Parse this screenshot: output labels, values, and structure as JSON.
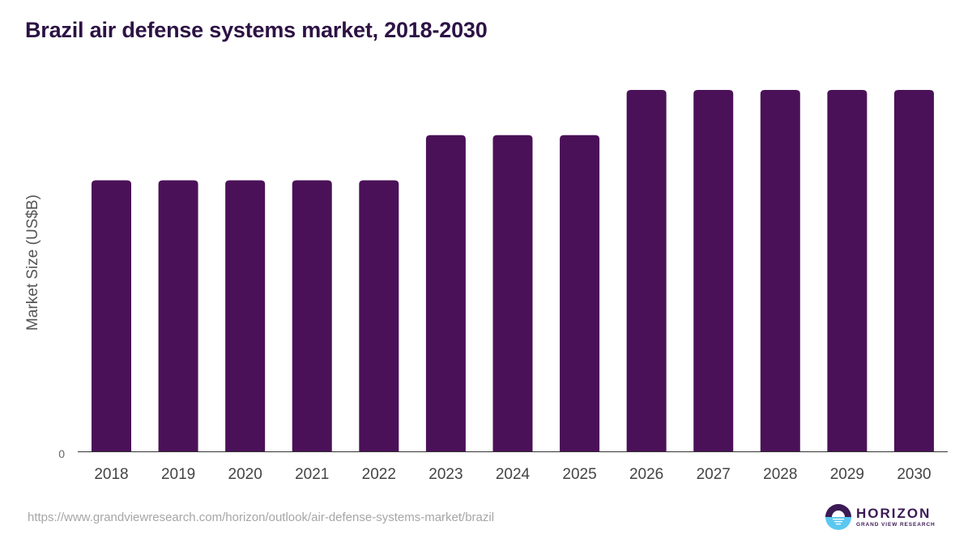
{
  "title": "Brazil air defense systems market, 2018-2030",
  "source_url": "https://www.grandviewresearch.com/horizon/outlook/air-defense-systems-market/brazil",
  "logo": {
    "icon": "horizon-sun-icon",
    "name": "HORIZON",
    "subtitle": "GRAND VIEW RESEARCH",
    "colors": {
      "dark": "#3b1a55",
      "light": "#5bc8f0"
    }
  },
  "chart_data": {
    "type": "bar",
    "title": "Brazil air defense systems market, 2018-2030",
    "xlabel": "",
    "ylabel": "Market Size (US$B)",
    "categories": [
      "2018",
      "2019",
      "2020",
      "2021",
      "2022",
      "2023",
      "2024",
      "2025",
      "2026",
      "2027",
      "2028",
      "2029",
      "2030"
    ],
    "values": [
      3.0,
      3.0,
      3.0,
      3.0,
      3.0,
      3.5,
      3.5,
      3.5,
      4.0,
      4.0,
      4.0,
      4.0,
      4.0
    ],
    "value_note": "relative heights; only the 0 tick is labeled",
    "y_ticks": [
      "0"
    ],
    "ylim": [
      0,
      4.0
    ],
    "grid": false,
    "legend": "none",
    "bar_color": "#4b1158"
  }
}
